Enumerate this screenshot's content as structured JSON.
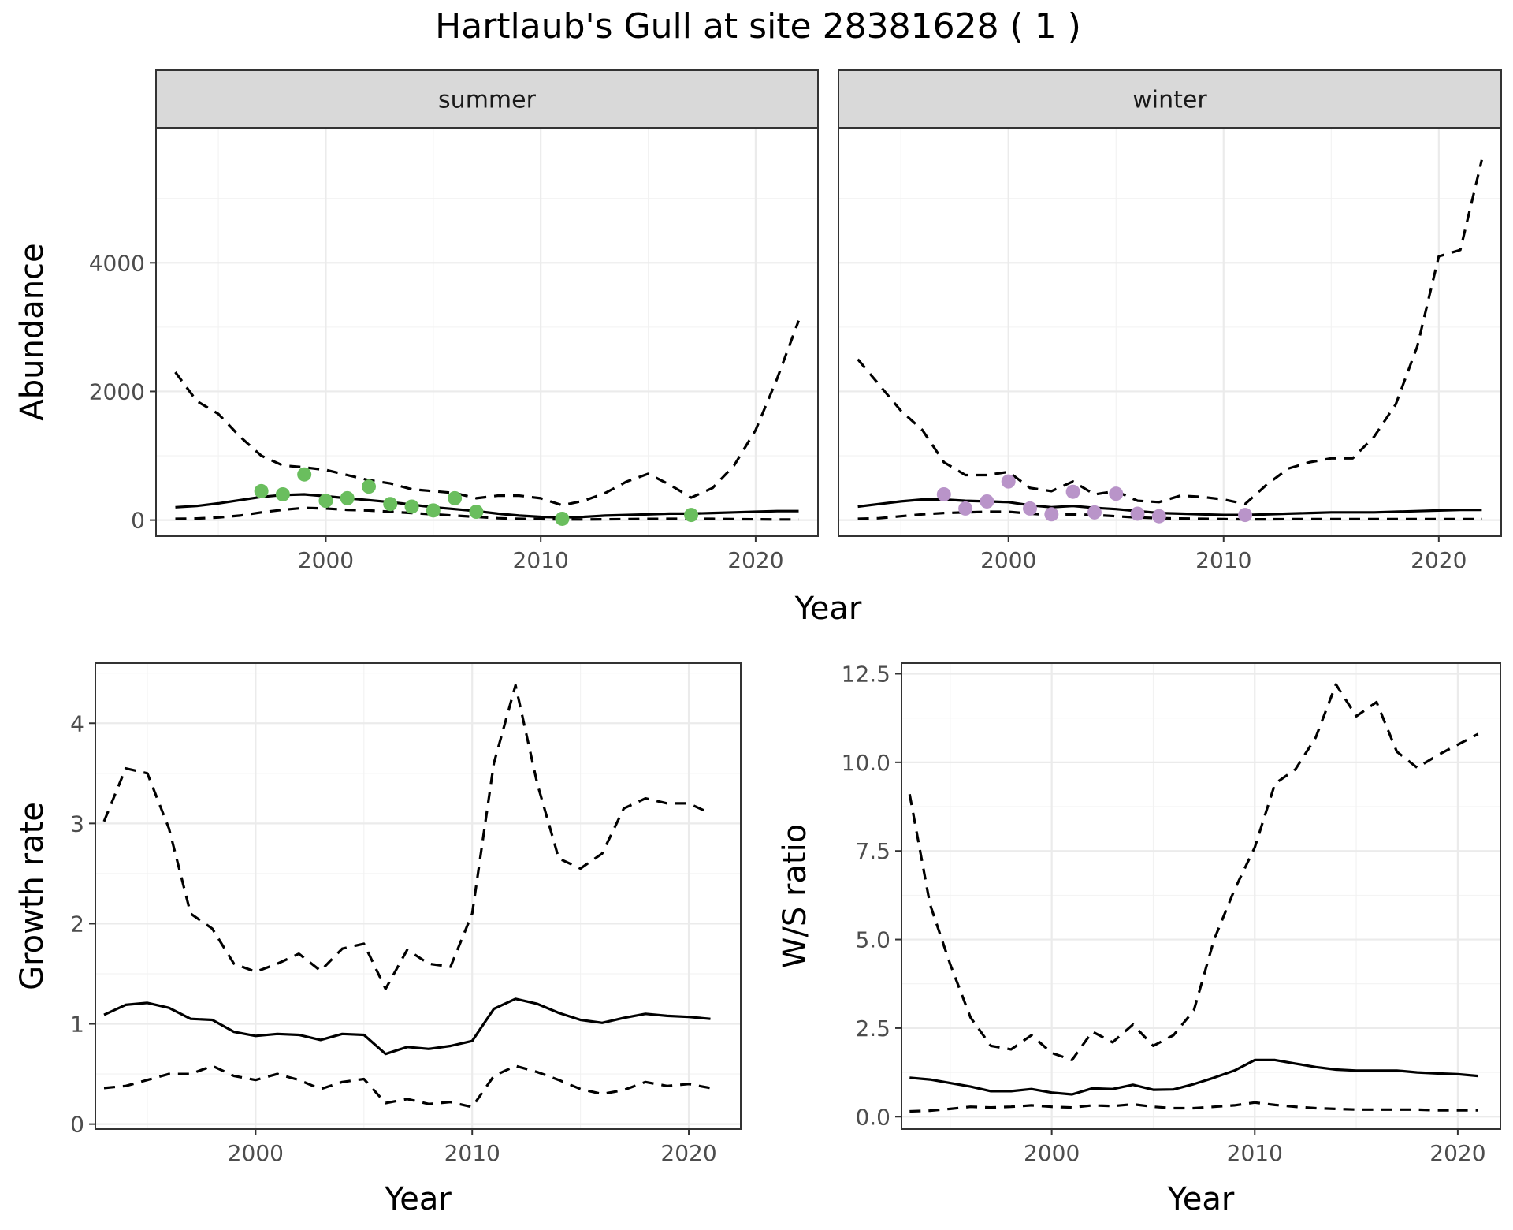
{
  "title": "Hartlaub's Gull at site 28381628 ( 1 )",
  "colors": {
    "summer_points": "#6abe5e",
    "winter_points": "#b994c9",
    "lines": "#000000"
  },
  "chart_data": [
    {
      "id": "summer",
      "type": "line",
      "strip": "summer",
      "xlabel": "Year",
      "ylabel": "Abundance",
      "xlim": [
        1992.1,
        2022.9
      ],
      "ylim": [
        -250,
        6100
      ],
      "xticks": [
        2000,
        2010,
        2020
      ],
      "yticks": [
        0,
        2000,
        4000
      ],
      "x": [
        1993,
        1994,
        1995,
        1996,
        1997,
        1998,
        1999,
        2000,
        2001,
        2002,
        2003,
        2004,
        2005,
        2006,
        2007,
        2008,
        2009,
        2010,
        2011,
        2012,
        2013,
        2014,
        2015,
        2016,
        2017,
        2018,
        2019,
        2020,
        2021,
        2022
      ],
      "series": [
        {
          "name": "estimate",
          "style": "solid",
          "values": [
            200,
            220,
            260,
            310,
            360,
            390,
            400,
            370,
            340,
            310,
            280,
            240,
            200,
            170,
            140,
            100,
            70,
            50,
            40,
            50,
            70,
            80,
            90,
            100,
            100,
            110,
            120,
            130,
            140,
            140
          ]
        },
        {
          "name": "upper",
          "style": "dashed",
          "values": [
            2300,
            1850,
            1650,
            1300,
            1000,
            850,
            820,
            780,
            700,
            620,
            570,
            480,
            450,
            420,
            340,
            380,
            380,
            340,
            230,
            300,
            420,
            600,
            720,
            550,
            350,
            500,
            850,
            1400,
            2200,
            3100
          ]
        },
        {
          "name": "lower",
          "style": "dashed",
          "values": [
            20,
            25,
            40,
            70,
            120,
            160,
            190,
            180,
            160,
            150,
            130,
            110,
            90,
            70,
            50,
            30,
            20,
            15,
            10,
            10,
            12,
            15,
            18,
            20,
            20,
            20,
            15,
            12,
            10,
            10
          ]
        }
      ],
      "points": {
        "x": [
          1997,
          1998,
          1999,
          2000,
          2001,
          2002,
          2003,
          2004,
          2005,
          2006,
          2007,
          2011,
          2017
        ],
        "y": [
          450,
          400,
          710,
          300,
          340,
          520,
          250,
          210,
          150,
          340,
          130,
          20,
          80
        ]
      }
    },
    {
      "id": "winter",
      "type": "line",
      "strip": "winter",
      "xlabel": "Year",
      "ylabel": "Abundance",
      "xlim": [
        1992.1,
        2022.9
      ],
      "ylim": [
        -250,
        6100
      ],
      "xticks": [
        2000,
        2010,
        2020
      ],
      "yticks": [
        0,
        2000,
        4000
      ],
      "x": [
        1993,
        1994,
        1995,
        1996,
        1997,
        1998,
        1999,
        2000,
        2001,
        2002,
        2003,
        2004,
        2005,
        2006,
        2007,
        2008,
        2009,
        2010,
        2011,
        2012,
        2013,
        2014,
        2015,
        2016,
        2017,
        2018,
        2019,
        2020,
        2021,
        2022
      ],
      "series": [
        {
          "name": "estimate",
          "style": "solid",
          "values": [
            210,
            250,
            290,
            320,
            320,
            300,
            290,
            280,
            230,
            200,
            220,
            190,
            170,
            140,
            110,
            100,
            90,
            80,
            80,
            90,
            100,
            110,
            120,
            120,
            120,
            130,
            140,
            150,
            160,
            160
          ]
        },
        {
          "name": "upper",
          "style": "dashed",
          "values": [
            2500,
            2100,
            1700,
            1400,
            900,
            700,
            700,
            750,
            500,
            450,
            600,
            400,
            450,
            300,
            280,
            380,
            360,
            320,
            250,
            550,
            800,
            900,
            960,
            960,
            1300,
            1800,
            2700,
            4100,
            4200,
            5600
          ]
        },
        {
          "name": "lower",
          "style": "dashed",
          "values": [
            20,
            30,
            60,
            90,
            110,
            120,
            130,
            130,
            100,
            80,
            90,
            80,
            60,
            40,
            30,
            25,
            20,
            15,
            12,
            12,
            15,
            15,
            15,
            15,
            15,
            15,
            15,
            15,
            15,
            15
          ]
        }
      ],
      "points": {
        "x": [
          1997,
          1998,
          1999,
          2000,
          2001,
          2002,
          2003,
          2004,
          2005,
          2006,
          2007,
          2011
        ],
        "y": [
          400,
          180,
          290,
          600,
          180,
          90,
          440,
          120,
          410,
          100,
          60,
          80
        ]
      }
    },
    {
      "id": "growth",
      "type": "line",
      "xlabel": "Year",
      "ylabel": "Growth rate",
      "xlim": [
        1992.6,
        2022.4
      ],
      "ylim": [
        -0.05,
        4.6
      ],
      "xticks": [
        2000,
        2010,
        2020
      ],
      "yticks": [
        0,
        1,
        2,
        3,
        4
      ],
      "x": [
        1993,
        1994,
        1995,
        1996,
        1997,
        1998,
        1999,
        2000,
        2001,
        2002,
        2003,
        2004,
        2005,
        2006,
        2007,
        2008,
        2009,
        2010,
        2011,
        2012,
        2013,
        2014,
        2015,
        2016,
        2017,
        2018,
        2019,
        2020,
        2021
      ],
      "series": [
        {
          "name": "estimate",
          "style": "solid",
          "values": [
            1.09,
            1.19,
            1.21,
            1.16,
            1.05,
            1.04,
            0.92,
            0.88,
            0.9,
            0.89,
            0.84,
            0.9,
            0.89,
            0.7,
            0.77,
            0.75,
            0.78,
            0.83,
            1.15,
            1.25,
            1.2,
            1.11,
            1.04,
            1.01,
            1.06,
            1.1,
            1.08,
            1.07,
            1.05
          ]
        },
        {
          "name": "upper",
          "style": "dashed",
          "values": [
            3.02,
            3.55,
            3.5,
            2.95,
            2.1,
            1.95,
            1.6,
            1.52,
            1.6,
            1.7,
            1.53,
            1.75,
            1.8,
            1.35,
            1.74,
            1.6,
            1.57,
            2.1,
            3.6,
            4.38,
            3.4,
            2.65,
            2.55,
            2.7,
            3.15,
            3.25,
            3.2,
            3.2,
            3.1
          ]
        },
        {
          "name": "lower",
          "style": "dashed",
          "values": [
            0.36,
            0.38,
            0.44,
            0.5,
            0.5,
            0.58,
            0.48,
            0.44,
            0.5,
            0.44,
            0.35,
            0.42,
            0.45,
            0.21,
            0.25,
            0.2,
            0.22,
            0.17,
            0.48,
            0.58,
            0.52,
            0.44,
            0.35,
            0.3,
            0.34,
            0.42,
            0.38,
            0.4,
            0.36
          ]
        }
      ]
    },
    {
      "id": "ratio",
      "type": "line",
      "xlabel": "Year",
      "ylabel": "W/S ratio",
      "xlim": [
        1992.6,
        2022.1
      ],
      "ylim": [
        -0.35,
        12.8
      ],
      "xticks": [
        2000,
        2010,
        2020
      ],
      "yticks": [
        0.0,
        2.5,
        5.0,
        7.5,
        10.0,
        12.5
      ],
      "ytick_labels": [
        "0.0",
        "2.5",
        "5.0",
        "7.5",
        "10.0",
        "12.5"
      ],
      "x": [
        1993,
        1994,
        1995,
        1996,
        1997,
        1998,
        1999,
        2000,
        2001,
        2002,
        2003,
        2004,
        2005,
        2006,
        2007,
        2008,
        2009,
        2010,
        2011,
        2012,
        2013,
        2014,
        2015,
        2016,
        2017,
        2018,
        2019,
        2020,
        2021
      ],
      "series": [
        {
          "name": "estimate",
          "style": "solid",
          "values": [
            1.1,
            1.05,
            0.95,
            0.85,
            0.72,
            0.72,
            0.78,
            0.68,
            0.63,
            0.8,
            0.78,
            0.9,
            0.76,
            0.77,
            0.92,
            1.1,
            1.3,
            1.6,
            1.6,
            1.5,
            1.4,
            1.33,
            1.3,
            1.3,
            1.3,
            1.25,
            1.22,
            1.2,
            1.15
          ]
        },
        {
          "name": "upper",
          "style": "dashed",
          "values": [
            9.1,
            6.0,
            4.3,
            2.8,
            2.0,
            1.9,
            2.3,
            1.8,
            1.6,
            2.4,
            2.1,
            2.6,
            2.0,
            2.3,
            3.0,
            5.0,
            6.4,
            7.6,
            9.4,
            9.8,
            10.7,
            12.2,
            11.3,
            11.7,
            10.3,
            9.85,
            10.2,
            10.5,
            10.8
          ]
        },
        {
          "name": "lower",
          "style": "dashed",
          "values": [
            0.15,
            0.17,
            0.22,
            0.28,
            0.26,
            0.28,
            0.32,
            0.28,
            0.26,
            0.32,
            0.3,
            0.35,
            0.28,
            0.24,
            0.24,
            0.28,
            0.32,
            0.4,
            0.33,
            0.28,
            0.24,
            0.22,
            0.2,
            0.2,
            0.2,
            0.2,
            0.18,
            0.18,
            0.18
          ]
        }
      ]
    }
  ]
}
